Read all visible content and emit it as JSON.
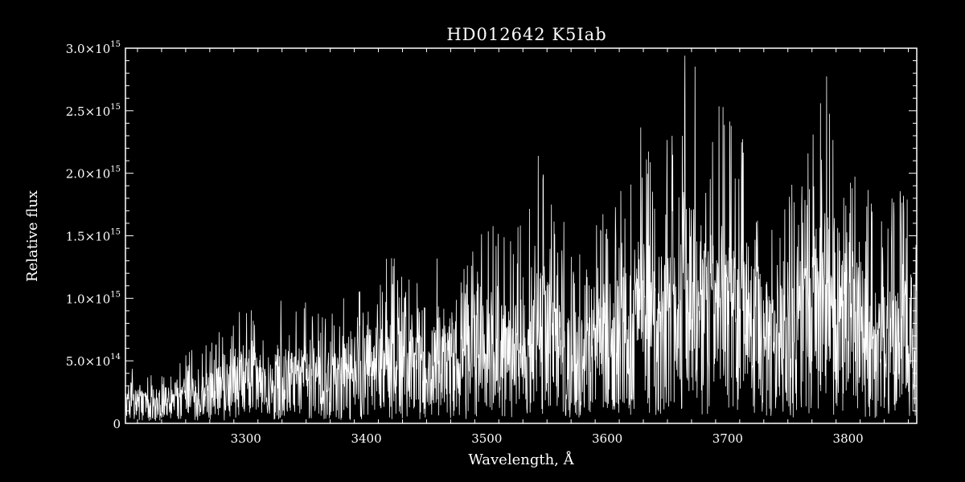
{
  "chart_data": {
    "type": "line",
    "title": "HD012642  K5Iab",
    "xlabel": "Wavelength, Å",
    "ylabel": "Relative flux",
    "xlim": [
      3200,
      3857
    ],
    "ylim": [
      0,
      3000000000000000.0
    ],
    "grid": false,
    "x_ticks": [
      3300,
      3400,
      3500,
      3600,
      3700,
      3800
    ],
    "x_tick_labels": [
      "3300",
      "3400",
      "3500",
      "3600",
      "3700",
      "3800"
    ],
    "y_ticks": [
      {
        "value": 0,
        "mantissa": "0",
        "exponent": ""
      },
      {
        "value": 500000000000000.0,
        "mantissa": "5.0×10",
        "exponent": "14"
      },
      {
        "value": 1000000000000000.0,
        "mantissa": "1.0×10",
        "exponent": "15"
      },
      {
        "value": 1500000000000000.0,
        "mantissa": "1.5×10",
        "exponent": "15"
      },
      {
        "value": 2000000000000000.0,
        "mantissa": "2.0×10",
        "exponent": "15"
      },
      {
        "value": 2500000000000000.0,
        "mantissa": "2.5×10",
        "exponent": "15"
      },
      {
        "value": 3000000000000000.0,
        "mantissa": "3.0×10",
        "exponent": "15"
      }
    ],
    "line_color": "#ffffff",
    "background": "#000000",
    "series": [
      {
        "x": [
          3200,
          3210,
          3220,
          3230,
          3240,
          3250,
          3260,
          3270,
          3280,
          3290,
          3300,
          3310,
          3320,
          3330,
          3340,
          3350,
          3360,
          3370,
          3380,
          3390,
          3400,
          3410,
          3420,
          3430,
          3440,
          3450,
          3460,
          3470,
          3480,
          3490,
          3500,
          3510,
          3520,
          3530,
          3540,
          3550,
          3560,
          3570,
          3580,
          3590,
          3600,
          3610,
          3620,
          3630,
          3640,
          3650,
          3660,
          3670,
          3680,
          3690,
          3700,
          3710,
          3720,
          3730,
          3740,
          3750,
          3760,
          3770,
          3780,
          3790,
          3800,
          3810,
          3820,
          3830,
          3840,
          3850,
          3857
        ],
        "values": [
          250000000000000.0,
          220000000000000.0,
          200000000000000.0,
          230000000000000.0,
          220000000000000.0,
          260000000000000.0,
          300000000000000.0,
          320000000000000.0,
          360000000000000.0,
          420000000000000.0,
          460000000000000.0,
          440000000000000.0,
          420000000000000.0,
          480000000000000.0,
          450000000000000.0,
          500000000000000.0,
          460000000000000.0,
          440000000000000.0,
          480000000000000.0,
          540000000000000.0,
          580000000000000.0,
          600000000000000.0,
          660000000000000.0,
          560000000000000.0,
          620000000000000.0,
          540000000000000.0,
          660000000000000.0,
          700000000000000.0,
          600000000000000.0,
          680000000000000.0,
          780000000000000.0,
          760000000000000.0,
          700000000000000.0,
          800000000000000.0,
          1100000000000000.0,
          950000000000000.0,
          800000000000000.0,
          740000000000000.0,
          700000000000000.0,
          760000000000000.0,
          900000000000000.0,
          940000000000000.0,
          1050000000000000.0,
          1200000000000000.0,
          1000000000000000.0,
          1100000000000000.0,
          1450000000000000.0,
          1500000000000000.0,
          1200000000000000.0,
          1250000000000000.0,
          1200000000000000.0,
          1150000000000000.0,
          1100000000000000.0,
          900000000000000.0,
          800000000000000.0,
          950000000000000.0,
          900000000000000.0,
          1150000000000000.0,
          1350000000000000.0,
          1250000000000000.0,
          1000000000000000.0,
          1000000000000000.0,
          850000000000000.0,
          800000000000000.0,
          900000000000000.0,
          950000000000000.0,
          1000000000000000.0
        ]
      }
    ]
  }
}
